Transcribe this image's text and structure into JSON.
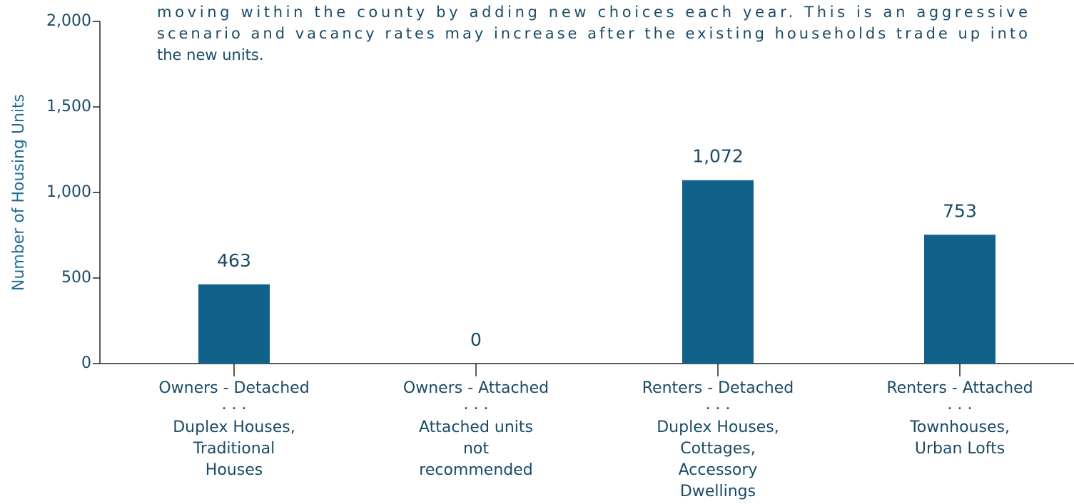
{
  "chart_data": {
    "type": "bar",
    "annotation_lines": [
      "moving within the county by adding new choices each year. This is an aggressive",
      "scenario and vacancy rates may increase after the existing households trade up into",
      "the new units."
    ],
    "y_label": "Number of Housing Units",
    "categories": [
      [
        "Owners - Detached",
        ". . .",
        "Duplex Houses,",
        "Traditional",
        "Houses"
      ],
      [
        "Owners - Attached",
        ". . .",
        "Attached units",
        "not",
        "recommended"
      ],
      [
        "Renters - Detached",
        ". . .",
        "Duplex Houses,",
        "Cottages,",
        "Accessory",
        "Dwellings"
      ],
      [
        "Renters - Attached",
        ". . .",
        "Townhouses,",
        "Urban Lofts"
      ]
    ],
    "values": [
      463,
      0,
      1072,
      753
    ],
    "value_labels": [
      "463",
      "0",
      "1,072",
      "753"
    ],
    "color": "#10628a",
    "ylim": [
      0,
      2000
    ],
    "yticks": [
      0,
      500,
      {
        "value": 1000,
        "label": "1,000"
      },
      {
        "value": 1500,
        "label": "1,500"
      },
      {
        "value": 2000,
        "label": "2,000"
      }
    ]
  }
}
